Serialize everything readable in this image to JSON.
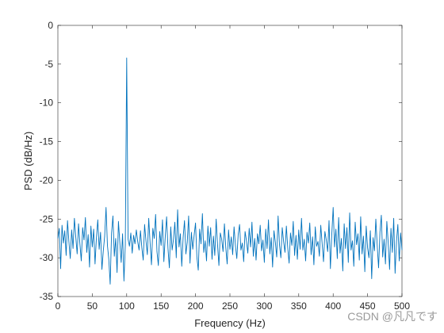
{
  "chart_data": {
    "type": "line",
    "xlabel": "Frequency (Hz)",
    "ylabel": "PSD (dB/Hz)",
    "watermark": "CSDN @凡凡です",
    "xlim": [
      0,
      500
    ],
    "ylim": [
      -35,
      0
    ],
    "xticks": [
      0,
      50,
      100,
      150,
      200,
      250,
      300,
      350,
      400,
      450,
      500
    ],
    "yticks": [
      -35,
      -30,
      -25,
      -20,
      -15,
      -10,
      -5,
      0
    ],
    "grid": false,
    "x": [
      0,
      2,
      4,
      6,
      8,
      10,
      12,
      14,
      16,
      18,
      20,
      22,
      24,
      26,
      28,
      30,
      32,
      34,
      36,
      38,
      40,
      42,
      44,
      46,
      48,
      50,
      52,
      54,
      56,
      58,
      60,
      62,
      64,
      66,
      68,
      70,
      72,
      74,
      76,
      78,
      80,
      82,
      84,
      86,
      88,
      90,
      92,
      94,
      96,
      98,
      100,
      102,
      104,
      106,
      108,
      110,
      112,
      114,
      116,
      118,
      120,
      122,
      124,
      126,
      128,
      130,
      132,
      134,
      136,
      138,
      140,
      142,
      144,
      146,
      148,
      150,
      152,
      154,
      156,
      158,
      160,
      162,
      164,
      166,
      168,
      170,
      172,
      174,
      176,
      178,
      180,
      182,
      184,
      186,
      188,
      190,
      192,
      194,
      196,
      198,
      200,
      202,
      204,
      206,
      208,
      210,
      212,
      214,
      216,
      218,
      220,
      222,
      224,
      226,
      228,
      230,
      232,
      234,
      236,
      238,
      240,
      242,
      244,
      246,
      248,
      250,
      252,
      254,
      256,
      258,
      260,
      262,
      264,
      266,
      268,
      270,
      272,
      274,
      276,
      278,
      280,
      282,
      284,
      286,
      288,
      290,
      292,
      294,
      296,
      298,
      300,
      302,
      304,
      306,
      308,
      310,
      312,
      314,
      316,
      318,
      320,
      322,
      324,
      326,
      328,
      330,
      332,
      334,
      336,
      338,
      340,
      342,
      344,
      346,
      348,
      350,
      352,
      354,
      356,
      358,
      360,
      362,
      364,
      366,
      368,
      370,
      372,
      374,
      376,
      378,
      380,
      382,
      384,
      386,
      388,
      390,
      392,
      394,
      396,
      398,
      400,
      402,
      404,
      406,
      408,
      410,
      412,
      414,
      416,
      418,
      420,
      422,
      424,
      426,
      428,
      430,
      432,
      434,
      436,
      438,
      440,
      442,
      444,
      446,
      448,
      450,
      452,
      454,
      456,
      458,
      460,
      462,
      464,
      466,
      468,
      470,
      472,
      474,
      476,
      478,
      480,
      482,
      484,
      486,
      488,
      490,
      492,
      494,
      496,
      498,
      500
    ],
    "series": [
      {
        "color": "#0072bd",
        "values": [
          -27.5,
          -26.2,
          -31.4,
          -25.8,
          -28.1,
          -26.5,
          -29.7,
          -25.2,
          -27.9,
          -30.1,
          -26.4,
          -28.8,
          -24.9,
          -27.3,
          -29.5,
          -25.6,
          -28.2,
          -30.4,
          -26.1,
          -27.7,
          -24.8,
          -29.3,
          -27.0,
          -31.2,
          -25.9,
          -28.6,
          -26.3,
          -30.8,
          -27.4,
          -25.1,
          -28.9,
          -26.7,
          -31.5,
          -29.1,
          -27.2,
          -23.5,
          -28.4,
          -30.2,
          -33.4,
          -26.8,
          -24.6,
          -29.8,
          -27.5,
          -31.9,
          -25.3,
          -28.0,
          -30.6,
          -26.9,
          -33.0,
          -28.3,
          -4.2,
          -27.6,
          -28.5,
          -26.8,
          -29.4,
          -27.1,
          -28.2,
          -26.4,
          -27.9,
          -29.0,
          -26.5,
          -28.7,
          -30.3,
          -25.7,
          -27.8,
          -29.6,
          -24.9,
          -28.1,
          -30.9,
          -26.2,
          -27.5,
          -24.4,
          -29.2,
          -31.0,
          -26.6,
          -28.4,
          -25.1,
          -30.5,
          -27.3,
          -24.7,
          -28.8,
          -31.3,
          -26.0,
          -29.0,
          -27.6,
          -25.4,
          -30.0,
          -23.8,
          -28.6,
          -26.9,
          -31.1,
          -27.4,
          -25.2,
          -29.5,
          -28.0,
          -24.6,
          -30.7,
          -26.7,
          -28.9,
          -27.1,
          -25.5,
          -29.9,
          -31.6,
          -26.3,
          -28.2,
          -24.3,
          -29.3,
          -27.8,
          -30.4,
          -25.9,
          -28.5,
          -26.1,
          -30.2,
          -27.2,
          -29.7,
          -25.0,
          -28.3,
          -31.0,
          -26.8,
          -27.6,
          -29.2,
          -25.6,
          -28.7,
          -30.8,
          -26.4,
          -28.9,
          -27.3,
          -29.6,
          -26.0,
          -28.4,
          -30.1,
          -27.0,
          -25.7,
          -29.0,
          -28.1,
          -30.5,
          -26.6,
          -27.8,
          -29.4,
          -26.2,
          -28.6,
          -25.4,
          -29.8,
          -27.5,
          -30.3,
          -26.9,
          -28.2,
          -25.8,
          -29.1,
          -27.7,
          -30.6,
          -26.3,
          -28.8,
          -25.1,
          -29.5,
          -27.4,
          -31.2,
          -26.5,
          -28.0,
          -29.9,
          -24.6,
          -28.3,
          -30.0,
          -26.1,
          -27.9,
          -29.3,
          -25.9,
          -28.7,
          -30.7,
          -26.8,
          -28.4,
          -25.3,
          -29.7,
          -27.1,
          -30.2,
          -26.4,
          -28.9,
          -24.9,
          -29.0,
          -27.6,
          -30.4,
          -26.7,
          -28.1,
          -25.5,
          -29.6,
          -27.3,
          -30.9,
          -26.0,
          -28.5,
          -27.9,
          -29.8,
          -25.8,
          -28.2,
          -30.5,
          -26.6,
          -27.7,
          -29.2,
          -25.2,
          -31.4,
          -27.0,
          -23.5,
          -28.6,
          -26.3,
          -30.1,
          -24.8,
          -29.4,
          -27.5,
          -31.7,
          -25.6,
          -28.8,
          -26.1,
          -30.6,
          -24.2,
          -29.0,
          -27.8,
          -31.1,
          -25.4,
          -28.3,
          -26.9,
          -30.3,
          -24.7,
          -29.5,
          -27.2,
          -31.8,
          -25.9,
          -28.7,
          -30.0,
          -26.5,
          -32.7,
          -27.4,
          -29.1,
          -25.0,
          -28.4,
          -31.3,
          -26.7,
          -24.5,
          -29.9,
          -27.6,
          -30.8,
          -25.3,
          -28.1,
          -31.5,
          -26.2,
          -29.3,
          -24.9,
          -32.0,
          -27.9,
          -25.7,
          -30.4,
          -26.8,
          -29.0
        ]
      }
    ]
  }
}
